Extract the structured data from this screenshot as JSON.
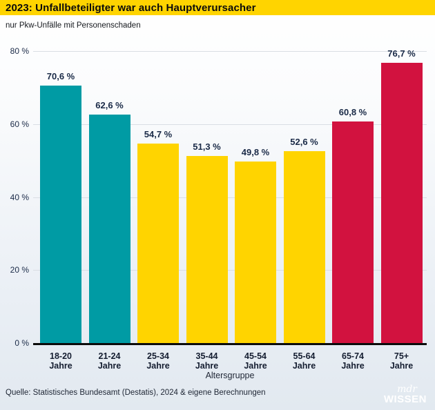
{
  "header": {
    "title": "2023: Unfallbeteiligter war auch Hauptverursacher",
    "subtitle": "nur Pkw-Unfälle mit Personenschaden"
  },
  "footer": {
    "source": "Quelle: Statistisches Bundesamt (Destatis), 2024 & eigene Berechnungen",
    "logo_line1": "mdr",
    "logo_line2": "WISSEN"
  },
  "colors": {
    "header_bg": "#FFD400",
    "teal": "#009BA4",
    "yellow": "#FFD400",
    "red": "#D2123F",
    "grid": "#D9DEE4",
    "axis": "#0B0B0B",
    "text": "#1A2A47"
  },
  "chart_data": {
    "type": "bar",
    "title": "2023: Unfallbeteiligter war auch Hauptverursacher",
    "subtitle": "nur Pkw-Unfälle mit Personenschaden",
    "categories": [
      {
        "line1": "18-20",
        "line2": "Jahre"
      },
      {
        "line1": "21-24",
        "line2": "Jahre"
      },
      {
        "line1": "25-34",
        "line2": "Jahre"
      },
      {
        "line1": "35-44",
        "line2": "Jahre"
      },
      {
        "line1": "45-54",
        "line2": "Jahre"
      },
      {
        "line1": "55-64",
        "line2": "Jahre"
      },
      {
        "line1": "65-74",
        "line2": "Jahre"
      },
      {
        "line1": "75+",
        "line2": "Jahre"
      }
    ],
    "values": [
      70.6,
      62.6,
      54.7,
      51.3,
      49.8,
      52.6,
      60.8,
      76.7
    ],
    "value_labels": [
      "70,6 %",
      "62,6 %",
      "54,7 %",
      "51,3 %",
      "49,8 %",
      "52,6 %",
      "60,8 %",
      "76,7 %"
    ],
    "bar_colors": [
      "#009BA4",
      "#009BA4",
      "#FFD400",
      "#FFD400",
      "#FFD400",
      "#FFD400",
      "#D2123F",
      "#D2123F"
    ],
    "xlabel": "Altersgruppe",
    "ylabel": "",
    "y_ticks": [
      {
        "value": 0,
        "label": "0 %"
      },
      {
        "value": 20,
        "label": "20 %"
      },
      {
        "value": 40,
        "label": "40 %"
      },
      {
        "value": 60,
        "label": "60 %"
      },
      {
        "value": 80,
        "label": "80 %"
      }
    ],
    "ylim": [
      0,
      80
    ],
    "grid": true,
    "legend": false
  }
}
